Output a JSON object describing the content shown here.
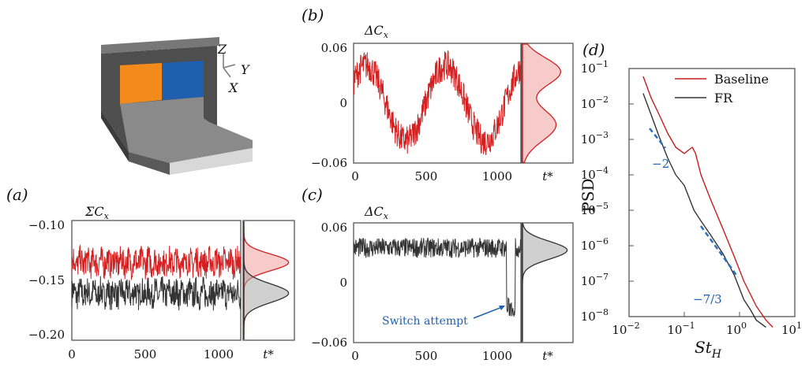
{
  "chart_data": [
    {
      "id": "a",
      "panel_label": "a",
      "type": "line",
      "ylabel_main": "ΣC",
      "ylabel_sub": "x",
      "x_ticks": [
        "0",
        "500",
        "1000"
      ],
      "y_ticks": [
        "−0.10",
        "−0.15",
        "−0.20"
      ],
      "xlim": [
        0,
        1150
      ],
      "ylim": [
        -0.21,
        -0.095
      ],
      "series": [
        {
          "color": "#d42020",
          "mean": -0.135,
          "amp": 0.013
        },
        {
          "color": "#333333",
          "mean": -0.165,
          "amp": 0.013
        }
      ],
      "pdf_label": "t*"
    },
    {
      "id": "b",
      "panel_label": "b",
      "type": "line",
      "ylabel_main": "ΔC",
      "ylabel_sub": "x",
      "x_ticks": [
        "0",
        "500",
        "1000"
      ],
      "y_ticks": [
        "0.06",
        "0",
        "−0.06"
      ],
      "xlim": [
        0,
        1150
      ],
      "ylim": [
        -0.06,
        0.06
      ],
      "series": [
        {
          "color": "#d42020",
          "switching": true,
          "range": [
            -0.05,
            0.05
          ]
        }
      ],
      "pdf_label": "t*"
    },
    {
      "id": "c",
      "panel_label": "c",
      "type": "line",
      "ylabel_main": "ΔC",
      "ylabel_sub": "x",
      "x_ticks": [
        "0",
        "500",
        "1000"
      ],
      "y_ticks": [
        "0.06",
        "0",
        "−0.06"
      ],
      "xlim": [
        0,
        1150
      ],
      "ylim": [
        -0.06,
        0.06
      ],
      "series": [
        {
          "color": "#333333",
          "mean": 0.035,
          "amp": 0.01
        }
      ],
      "annotation": "Switch attempt",
      "pdf_label": "t*"
    },
    {
      "id": "d",
      "panel_label": "d",
      "type": "line",
      "log_x": true,
      "log_y": true,
      "xlabel_main": "St",
      "xlabel_sub": "H",
      "ylabel": "PSD",
      "xlim": [
        0.01,
        10
      ],
      "ylim": [
        1e-08,
        0.1
      ],
      "x_ticks": [
        {
          "b": "10",
          "e": "−2"
        },
        {
          "b": "10",
          "e": "−1"
        },
        {
          "b": "10",
          "e": "0"
        },
        {
          "b": "10",
          "e": "1"
        }
      ],
      "y_ticks": [
        {
          "b": "10",
          "e": "−1"
        },
        {
          "b": "10",
          "e": "−2"
        },
        {
          "b": "10",
          "e": "−3"
        },
        {
          "b": "10",
          "e": "−4"
        },
        {
          "b": "10",
          "e": "−5"
        },
        {
          "b": "10",
          "e": "−6"
        },
        {
          "b": "10",
          "e": "−7"
        },
        {
          "b": "10",
          "e": "−8"
        }
      ],
      "series": [
        {
          "name": "Baseline",
          "color": "#c41e1e",
          "x": [
            0.018,
            0.025,
            0.035,
            0.05,
            0.07,
            0.1,
            0.12,
            0.14,
            0.16,
            0.2,
            0.3,
            0.5,
            0.8,
            1.2,
            2,
            3,
            4
          ],
          "y": [
            0.06,
            0.015,
            0.005,
            0.0015,
            0.0006,
            0.0004,
            0.0005,
            0.0006,
            0.0004,
            0.0001,
            2e-05,
            3e-06,
            5e-07,
            1e-07,
            2e-08,
            8e-09,
            5e-09
          ]
        },
        {
          "name": "FR",
          "color": "#333333",
          "x": [
            0.018,
            0.025,
            0.035,
            0.05,
            0.07,
            0.1,
            0.15,
            0.2,
            0.3,
            0.5,
            0.8,
            1.2,
            1.6,
            2,
            3
          ],
          "y": [
            0.02,
            0.005,
            0.0012,
            0.0003,
            0.0001,
            5e-05,
            1e-05,
            5e-06,
            2e-06,
            6e-07,
            1.5e-07,
            3e-08,
            1.5e-08,
            8e-09,
            5e-09
          ]
        }
      ],
      "slope_labels": [
        "−2",
        "−7/3"
      ]
    }
  ],
  "axes_labels": {
    "model_z": "Z",
    "model_y": "Y",
    "model_x": "X"
  }
}
